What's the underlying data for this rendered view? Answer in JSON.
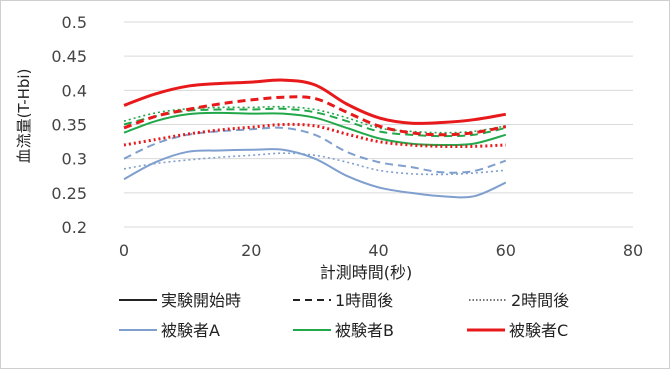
{
  "chart_data": {
    "type": "line",
    "title": "",
    "xlabel": "計測時間(秒)",
    "ylabel": "血流量(T-Hbi)",
    "xlim": [
      0,
      80
    ],
    "ylim": [
      0.2,
      0.5
    ],
    "xticks": [
      0,
      20,
      40,
      60,
      80
    ],
    "yticks": [
      0.2,
      0.25,
      0.3,
      0.35,
      0.4,
      0.45,
      0.5
    ],
    "xtick_labels": [
      "0",
      "20",
      "40",
      "60",
      "80"
    ],
    "ytick_labels": [
      "0.2",
      "0.25",
      "0.3",
      "0.35",
      "0.4",
      "0.45",
      "0.5"
    ],
    "grid": "horizontal",
    "legend_position": "bottom",
    "legend": {
      "styles": [
        {
          "label": "実験開始時",
          "dash": "solid"
        },
        {
          "label": "1時間後",
          "dash": "dashed"
        },
        {
          "label": "2時間後",
          "dash": "dotted"
        }
      ],
      "subjects": [
        {
          "label": "被験者A",
          "color": "#7f9fcf"
        },
        {
          "label": "被験者B",
          "color": "#22a84a"
        },
        {
          "label": "被験者C",
          "color": "#e8191b"
        }
      ]
    },
    "x": [
      0,
      5,
      10,
      15,
      20,
      25,
      30,
      35,
      40,
      45,
      50,
      55,
      60
    ],
    "series": [
      {
        "subject": "被験者A",
        "time": "実験開始時",
        "color": "#7f9fcf",
        "dash": "solid",
        "values": [
          0.27,
          0.295,
          0.31,
          0.312,
          0.313,
          0.313,
          0.3,
          0.275,
          0.258,
          0.25,
          0.245,
          0.245,
          0.265
        ]
      },
      {
        "subject": "被験者A",
        "time": "1時間後",
        "color": "#7f9fcf",
        "dash": "dashed",
        "values": [
          0.3,
          0.322,
          0.335,
          0.34,
          0.343,
          0.345,
          0.335,
          0.31,
          0.295,
          0.288,
          0.28,
          0.282,
          0.297
        ]
      },
      {
        "subject": "被験者A",
        "time": "2時間後",
        "color": "#7f9fcf",
        "dash": "dotted",
        "values": [
          0.285,
          0.293,
          0.298,
          0.302,
          0.305,
          0.308,
          0.305,
          0.295,
          0.283,
          0.278,
          0.277,
          0.279,
          0.283
        ]
      },
      {
        "subject": "被験者B",
        "time": "実験開始時",
        "color": "#22a84a",
        "dash": "solid",
        "values": [
          0.338,
          0.355,
          0.365,
          0.367,
          0.366,
          0.366,
          0.36,
          0.345,
          0.33,
          0.322,
          0.32,
          0.322,
          0.335
        ]
      },
      {
        "subject": "被験者B",
        "time": "1時間後",
        "color": "#22a84a",
        "dash": "dashed",
        "values": [
          0.35,
          0.362,
          0.37,
          0.372,
          0.372,
          0.373,
          0.368,
          0.355,
          0.34,
          0.335,
          0.333,
          0.335,
          0.345
        ]
      },
      {
        "subject": "被験者B",
        "time": "2時間後",
        "color": "#22a84a",
        "dash": "dotted",
        "values": [
          0.355,
          0.367,
          0.373,
          0.375,
          0.375,
          0.376,
          0.372,
          0.36,
          0.345,
          0.34,
          0.338,
          0.34,
          0.348
        ]
      },
      {
        "subject": "被験者C",
        "time": "実験開始時",
        "color": "#e8191b",
        "dash": "solid",
        "values": [
          0.378,
          0.395,
          0.406,
          0.41,
          0.412,
          0.415,
          0.408,
          0.38,
          0.36,
          0.352,
          0.353,
          0.357,
          0.365
        ]
      },
      {
        "subject": "被験者C",
        "time": "1時間後",
        "color": "#e8191b",
        "dash": "dashed",
        "values": [
          0.345,
          0.362,
          0.372,
          0.38,
          0.386,
          0.39,
          0.388,
          0.368,
          0.348,
          0.338,
          0.335,
          0.338,
          0.347
        ]
      },
      {
        "subject": "被験者C",
        "time": "2時間後",
        "color": "#e8191b",
        "dash": "dotted",
        "values": [
          0.32,
          0.328,
          0.336,
          0.342,
          0.346,
          0.35,
          0.348,
          0.336,
          0.325,
          0.32,
          0.318,
          0.318,
          0.32
        ]
      }
    ]
  }
}
